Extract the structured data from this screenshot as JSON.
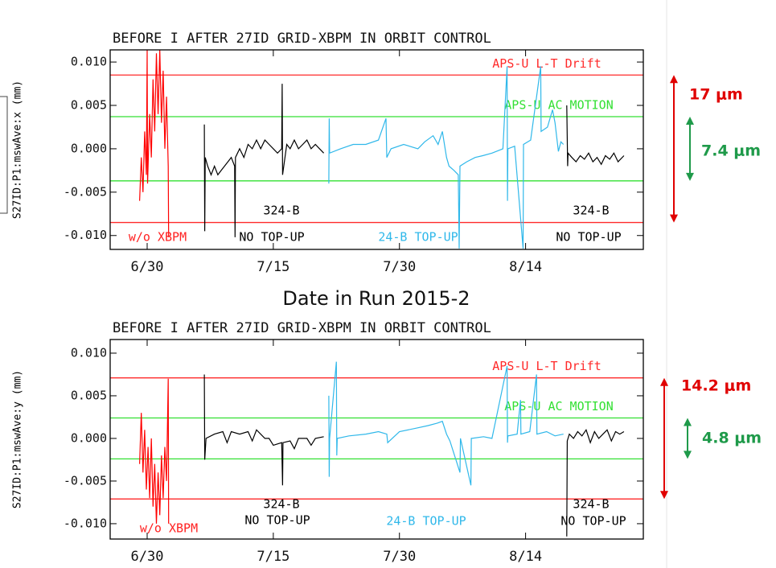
{
  "chart_data": [
    {
      "type": "line",
      "title": "BEFORE I AFTER 27ID GRID-XBPM IN ORBIT CONTROL",
      "ylabel": "S27ID:P1:mswAve:x (mm)",
      "xlabel": "Date in Run 2015-2",
      "xlim": [
        -4.4,
        59
      ],
      "ylim": [
        -0.0116,
        0.0114
      ],
      "xticks": [
        {
          "value": 0,
          "label": "6/30"
        },
        {
          "value": 15,
          "label": "7/15"
        },
        {
          "value": 30,
          "label": "7/30"
        },
        {
          "value": 45,
          "label": "8/14"
        }
      ],
      "yticks": [
        {
          "value": 0.01,
          "label": "0.010"
        },
        {
          "value": 0.005,
          "label": "0.005"
        },
        {
          "value": 0,
          "label": "0.000"
        },
        {
          "value": -0.005,
          "label": "-0.005"
        },
        {
          "value": -0.01,
          "label": "-0.010"
        }
      ],
      "ref_lines": [
        {
          "text": "APS-U L-T Drift",
          "color": "#ff2a2a",
          "values": [
            0.0085,
            -0.0085
          ]
        },
        {
          "text": "APS-U AC MOTION",
          "color": "#33e033",
          "values": [
            0.0037,
            -0.0037
          ]
        }
      ],
      "range_labels": [
        {
          "text": "17 μm",
          "color": "#e00000"
        },
        {
          "text": "7.4 μm",
          "color": "#1f9a4a"
        }
      ],
      "annotations": [
        {
          "text": "324-B",
          "color": "#000000"
        },
        {
          "text": "324-B",
          "color": "#000000"
        },
        {
          "text": "w/o XBPM",
          "color": "#ff2020"
        },
        {
          "text": "NO TOP-UP",
          "color": "#000000"
        },
        {
          "text": "24-B TOP-UP",
          "color": "#30b8ea"
        },
        {
          "text": "NO TOP-UP",
          "color": "#000000"
        }
      ],
      "series": [
        {
          "color": "#ff0000",
          "x": [
            -0.9,
            -0.7,
            -0.5,
            -0.3,
            -0.1,
            0,
            0.05,
            0.3,
            0.5,
            0.7,
            0.9,
            1.1,
            1.3,
            1.5,
            1.7,
            1.9,
            2.1,
            2.3,
            2.5,
            2.55
          ],
          "values": [
            -0.006,
            -0.001,
            -0.005,
            0.002,
            -0.003,
            0.0114,
            -0.004,
            0.004,
            -0.001,
            0.008,
            0.002,
            0.011,
            0.004,
            0.0114,
            0.003,
            0.009,
            0.0,
            0.006,
            -0.002,
            -0.0102
          ]
        },
        {
          "color": "#000000",
          "x": [
            6.8,
            6.85,
            6.9,
            7.2,
            7.6,
            8,
            8.4,
            8.8,
            9.2,
            9.6,
            10,
            10.4,
            10.45,
            10.5,
            11,
            11.5,
            12,
            12.5,
            13,
            13.5,
            14,
            14.5,
            15,
            15.5,
            16,
            16.05,
            16.1,
            16.6,
            17,
            17.5,
            18,
            18.5,
            19,
            19.5,
            20,
            20.5,
            21
          ],
          "values": [
            0.0028,
            -0.0095,
            -0.001,
            -0.002,
            -0.003,
            -0.002,
            -0.003,
            -0.0025,
            -0.002,
            -0.0015,
            -0.001,
            -0.002,
            -0.0102,
            -0.001,
            0.0,
            -0.001,
            0.0005,
            0.0,
            0.001,
            0.0,
            0.001,
            0.0005,
            0.0,
            -0.0005,
            0.0,
            0.0075,
            -0.003,
            0.0005,
            0.0,
            0.001,
            0.0,
            0.0005,
            0.001,
            0.0,
            0.0005,
            0.0,
            -0.0005
          ]
        },
        {
          "color": "#30b8ea",
          "x": [
            21.6,
            21.65,
            21.7,
            23,
            24.5,
            26,
            27.5,
            28.4,
            28.5,
            29,
            30.5,
            32.2,
            33,
            34,
            34.6,
            35.1,
            35.6,
            35.9,
            36.5,
            37,
            37.1,
            37.2,
            38,
            39,
            39.9,
            41,
            42.3,
            42.8,
            42.85,
            42.9,
            43.7,
            44.7,
            44.75,
            45.6,
            46.8,
            46.85,
            47.6,
            48.2,
            48.5,
            48.9,
            49.2,
            49.5
          ],
          "values": [
            -0.004,
            0.0035,
            -0.0005,
            0.0,
            0.0005,
            0.0005,
            0.001,
            0.0035,
            -0.001,
            0.0,
            0.0005,
            0.0,
            0.0008,
            0.0015,
            0.0005,
            0.002,
            -0.001,
            -0.002,
            -0.0025,
            -0.003,
            -0.0115,
            -0.002,
            -0.0015,
            -0.001,
            -0.0008,
            -0.0005,
            0.0,
            0.0095,
            -0.006,
            0.0,
            0.0003,
            -0.0115,
            0.0005,
            0.001,
            0.0095,
            0.002,
            0.0025,
            0.0045,
            0.003,
            -0.0003,
            0.0008,
            0.0005
          ]
        },
        {
          "color": "#000000",
          "x": [
            49.9,
            50,
            50.05,
            50.5,
            51,
            51.5,
            52,
            52.5,
            53,
            53.5,
            54,
            54.5,
            55,
            55.5,
            56,
            56.7
          ],
          "values": [
            0.005,
            -0.002,
            -0.0005,
            -0.001,
            -0.0015,
            -0.0008,
            -0.0012,
            -0.0005,
            -0.0015,
            -0.001,
            -0.0018,
            -0.0008,
            -0.0012,
            -0.0005,
            -0.0015,
            -0.0008
          ]
        }
      ]
    },
    {
      "type": "line",
      "title": "BEFORE I AFTER 27ID GRID-XBPM IN ORBIT CONTROL",
      "ylabel": "S27ID:P1:mswAve:y (mm)",
      "xlim": [
        -4.4,
        59
      ],
      "ylim": [
        -0.0118,
        0.0116
      ],
      "xticks": [
        {
          "value": 0,
          "label": "6/30"
        },
        {
          "value": 15,
          "label": "7/15"
        },
        {
          "value": 30,
          "label": "7/30"
        },
        {
          "value": 45,
          "label": "8/14"
        }
      ],
      "yticks": [
        {
          "value": 0.01,
          "label": "0.010"
        },
        {
          "value": 0.005,
          "label": "0.005"
        },
        {
          "value": 0,
          "label": "0.000"
        },
        {
          "value": -0.005,
          "label": "-0.005"
        },
        {
          "value": -0.01,
          "label": "-0.010"
        }
      ],
      "ref_lines": [
        {
          "text": "APS-U L-T Drift",
          "color": "#ff2a2a",
          "values": [
            0.0071,
            -0.0071
          ]
        },
        {
          "text": "APS-U AC MOTION",
          "color": "#33e033",
          "values": [
            0.0024,
            -0.0024
          ]
        }
      ],
      "range_labels": [
        {
          "text": "14.2 μm",
          "color": "#e00000"
        },
        {
          "text": "4.8 μm",
          "color": "#1f9a4a"
        }
      ],
      "annotations": [
        {
          "text": "324-B",
          "color": "#000000"
        },
        {
          "text": "324-B",
          "color": "#000000"
        },
        {
          "text": "w/o XBPM",
          "color": "#ff2020"
        },
        {
          "text": "NO TOP-UP",
          "color": "#000000"
        },
        {
          "text": "24-B TOP-UP",
          "color": "#30b8ea"
        },
        {
          "text": "NO TOP-UP",
          "color": "#000000"
        }
      ],
      "series": [
        {
          "color": "#ff0000",
          "x": [
            -0.9,
            -0.7,
            -0.5,
            -0.3,
            -0.1,
            0.1,
            0.3,
            0.5,
            0.7,
            0.9,
            1.1,
            1.3,
            1.5,
            1.7,
            1.9,
            2.1,
            2.3,
            2.5,
            2.55
          ],
          "values": [
            -0.003,
            0.003,
            -0.004,
            0.001,
            -0.006,
            -0.001,
            -0.007,
            0.0,
            -0.008,
            -0.003,
            -0.01,
            -0.004,
            -0.009,
            -0.002,
            -0.007,
            -0.001,
            -0.005,
            0.007,
            -0.01
          ]
        },
        {
          "color": "#000000",
          "x": [
            6.8,
            6.85,
            7,
            8,
            9,
            9.5,
            10,
            11,
            12,
            12.5,
            13,
            14,
            14.5,
            15,
            16,
            16.1,
            16.15,
            17,
            17.5,
            18,
            19,
            19.5,
            20,
            21
          ],
          "values": [
            0.0075,
            -0.0025,
            0.0,
            0.0005,
            0.0008,
            -0.0005,
            0.0008,
            0.0005,
            0.0008,
            -0.0003,
            0.001,
            0.0,
            0.0,
            -0.0008,
            -0.0005,
            -0.0055,
            -0.0005,
            -0.0003,
            -0.0012,
            0.0,
            0.0,
            -0.0008,
            0.0,
            0.0002
          ]
        },
        {
          "color": "#30b8ea",
          "x": [
            21.6,
            21.65,
            21.7,
            22.5,
            22.55,
            22.6,
            24,
            26,
            27.5,
            28.5,
            28.6,
            30,
            32,
            33.4,
            34.5,
            35.1,
            35.6,
            36,
            37.2,
            37.25,
            37.3,
            38.5,
            38.55,
            38.6,
            40,
            41,
            42.8,
            42.85,
            42.9,
            44,
            44.4,
            44.45,
            45.5,
            46.3,
            46.35,
            47.5,
            48.5,
            49.5
          ],
          "values": [
            0.005,
            -0.0045,
            0.0,
            0.009,
            -0.002,
            0.0,
            0.0003,
            0.0005,
            0.0008,
            0.0005,
            -0.0005,
            0.0008,
            0.0012,
            0.0015,
            0.0018,
            0.002,
            0.0005,
            -0.0003,
            -0.004,
            0.0,
            -0.0002,
            -0.0055,
            0.0,
            0.0,
            0.0002,
            0.0,
            0.0085,
            -0.0005,
            0.0003,
            0.0005,
            0.0045,
            0.0005,
            0.0008,
            0.0075,
            0.0005,
            0.0008,
            0.0003,
            0.0005
          ]
        },
        {
          "color": "#000000",
          "x": [
            49.9,
            49.95,
            50.2,
            50.7,
            51.2,
            51.7,
            52.2,
            52.7,
            53.2,
            53.7,
            54.2,
            54.7,
            55.2,
            55.7,
            56.2,
            56.7
          ],
          "values": [
            -0.0115,
            -0.0003,
            0.0005,
            0.0,
            0.0008,
            0.0003,
            0.001,
            -0.0005,
            0.0008,
            0.0,
            0.0005,
            0.001,
            -0.0003,
            0.0008,
            0.0005,
            0.0008
          ]
        }
      ]
    }
  ]
}
